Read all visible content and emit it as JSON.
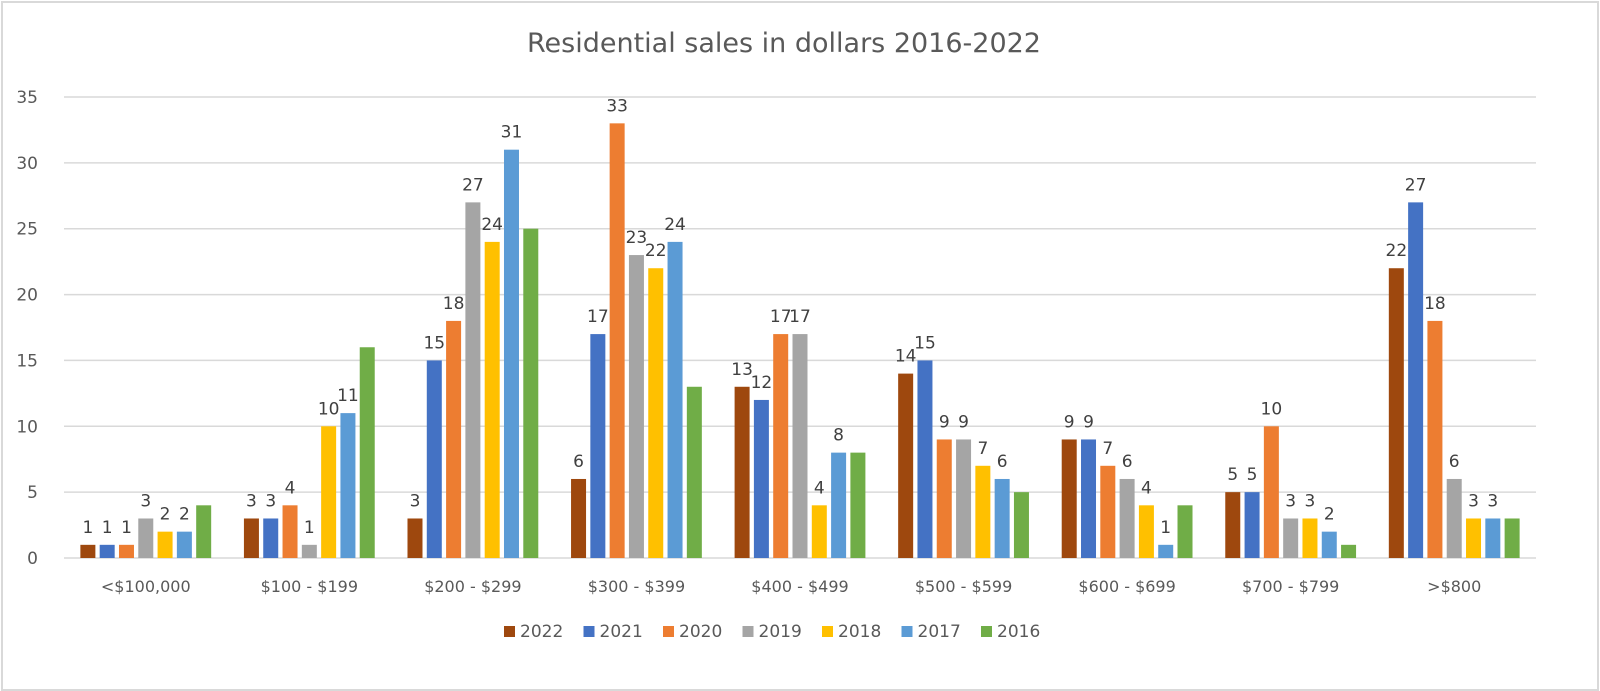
{
  "chart_data": {
    "type": "bar",
    "title": "Residential sales in dollars 2016-2022",
    "xlabel": "",
    "ylabel": "",
    "ylim": [
      0,
      35
    ],
    "yticks": [
      0,
      5,
      10,
      15,
      20,
      25,
      30,
      35
    ],
    "grid": true,
    "legend_position": "bottom",
    "categories": [
      "<$100,000",
      "$100 - $199",
      "$200 - $299",
      "$300 - $399",
      "$400 - $499",
      "$500 - $599",
      "$600 - $699",
      "$700 - $799",
      ">$800"
    ],
    "series": [
      {
        "name": "2022",
        "color": "#9e480e",
        "values": [
          1,
          3,
          3,
          6,
          13,
          14,
          9,
          5,
          22
        ],
        "labeled": true
      },
      {
        "name": "2021",
        "color": "#4472c4",
        "values": [
          1,
          3,
          15,
          17,
          12,
          15,
          9,
          5,
          27
        ],
        "labeled": true
      },
      {
        "name": "2020",
        "color": "#ed7d31",
        "values": [
          1,
          4,
          18,
          33,
          17,
          9,
          7,
          10,
          18
        ],
        "labeled": true
      },
      {
        "name": "2019",
        "color": "#a5a5a5",
        "values": [
          3,
          1,
          27,
          23,
          17,
          9,
          6,
          3,
          6
        ],
        "labeled": true
      },
      {
        "name": "2018",
        "color": "#ffc000",
        "values": [
          2,
          10,
          24,
          22,
          4,
          7,
          4,
          3,
          3
        ],
        "labeled": true
      },
      {
        "name": "2017",
        "color": "#5b9bd5",
        "values": [
          2,
          11,
          31,
          24,
          8,
          6,
          1,
          2,
          3
        ],
        "labeled": true
      },
      {
        "name": "2016",
        "color": "#70ad47",
        "values": [
          4,
          16,
          25,
          13,
          8,
          5,
          4,
          1,
          3
        ],
        "labeled": false
      }
    ]
  }
}
